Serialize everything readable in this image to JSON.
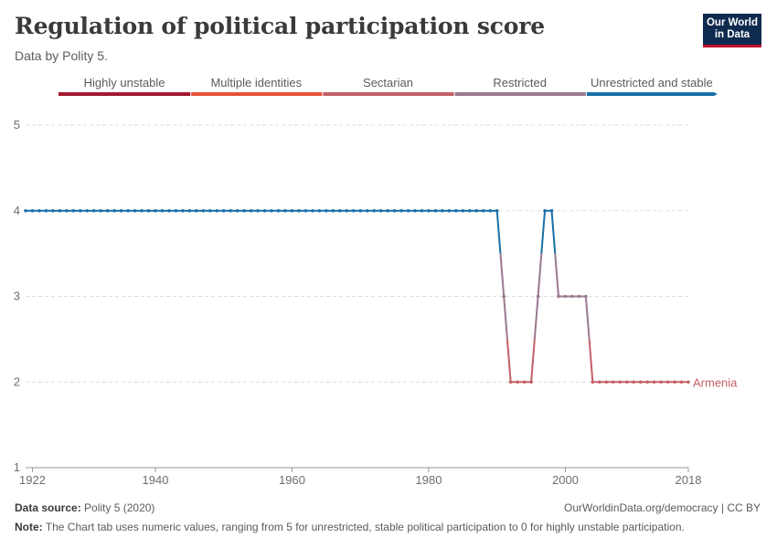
{
  "header": {
    "title": "Regulation of political participation score",
    "subtitle": "Data by Polity 5.",
    "logo_line1": "Our World",
    "logo_line2": "in Data"
  },
  "footer": {
    "source_label": "Data source:",
    "source_value": "Polity 5 (2020)",
    "url": "OurWorldinData.org/democracy | CC BY",
    "note_label": "Note:",
    "note_value": "The Chart tab uses numeric values, ranging from 5 for unrestricted, stable political participation to 0 for highly unstable participation."
  },
  "colors": {
    "highly_unstable": "#a2182f",
    "multiple_identities": "#e5533a",
    "sectarian": "#c45f67",
    "restricted": "#9a7a8f",
    "unrestricted": "#1a6fa8",
    "armenia_label": "#c45f67"
  },
  "chart_data": {
    "type": "line",
    "title": "Regulation of political participation score",
    "xlabel": "",
    "ylabel": "",
    "xlim": [
      1921,
      2018
    ],
    "ylim": [
      1,
      5
    ],
    "x_ticks": [
      1922,
      1940,
      1960,
      1980,
      2000,
      2018
    ],
    "y_ticks": [
      1,
      2,
      3,
      4,
      5
    ],
    "grid": "horizontal dashed",
    "legend": {
      "placement": "top",
      "items": [
        "Highly unstable",
        "Multiple identities",
        "Sectarian",
        "Restricted",
        "Unrestricted and stable"
      ]
    },
    "series": [
      {
        "name": "Armenia",
        "x": [
          1921,
          1922,
          1923,
          1924,
          1925,
          1926,
          1927,
          1928,
          1929,
          1930,
          1931,
          1932,
          1933,
          1934,
          1935,
          1936,
          1937,
          1938,
          1939,
          1940,
          1941,
          1942,
          1943,
          1944,
          1945,
          1946,
          1947,
          1948,
          1949,
          1950,
          1951,
          1952,
          1953,
          1954,
          1955,
          1956,
          1957,
          1958,
          1959,
          1960,
          1961,
          1962,
          1963,
          1964,
          1965,
          1966,
          1967,
          1968,
          1969,
          1970,
          1971,
          1972,
          1973,
          1974,
          1975,
          1976,
          1977,
          1978,
          1979,
          1980,
          1981,
          1982,
          1983,
          1984,
          1985,
          1986,
          1987,
          1988,
          1989,
          1990,
          1991,
          1992,
          1993,
          1994,
          1995,
          1996,
          1997,
          1998,
          1999,
          2000,
          2001,
          2002,
          2003,
          2004,
          2005,
          2006,
          2007,
          2008,
          2009,
          2010,
          2011,
          2012,
          2013,
          2014,
          2015,
          2016,
          2017,
          2018
        ],
        "values": [
          4,
          4,
          4,
          4,
          4,
          4,
          4,
          4,
          4,
          4,
          4,
          4,
          4,
          4,
          4,
          4,
          4,
          4,
          4,
          4,
          4,
          4,
          4,
          4,
          4,
          4,
          4,
          4,
          4,
          4,
          4,
          4,
          4,
          4,
          4,
          4,
          4,
          4,
          4,
          4,
          4,
          4,
          4,
          4,
          4,
          4,
          4,
          4,
          4,
          4,
          4,
          4,
          4,
          4,
          4,
          4,
          4,
          4,
          4,
          4,
          4,
          4,
          4,
          4,
          4,
          4,
          4,
          4,
          4,
          4,
          3,
          2,
          2,
          2,
          2,
          3,
          4,
          4,
          3,
          3,
          3,
          3,
          3,
          2,
          2,
          2,
          2,
          2,
          2,
          2,
          2,
          2,
          2,
          2,
          2,
          2,
          2,
          2
        ]
      }
    ]
  }
}
